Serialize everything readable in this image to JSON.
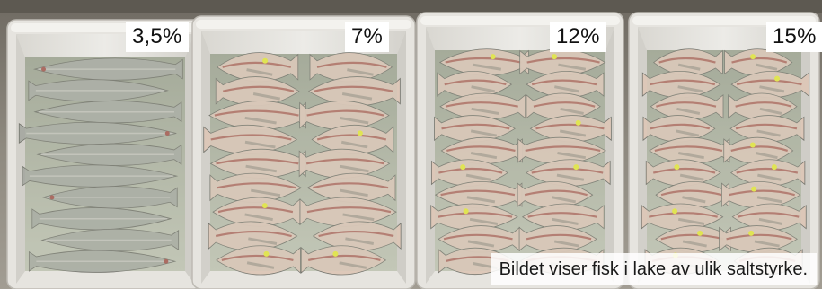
{
  "photo": {
    "tubs": [
      {
        "salt_label": "3,5%"
      },
      {
        "salt_label": "7%"
      },
      {
        "salt_label": "12%"
      },
      {
        "salt_label": "15%"
      }
    ],
    "caption": "Bildet viser fisk i lake av ulik saltstyrke.",
    "colors": {
      "background": "#8a857c",
      "tub_white": "#e6e4df",
      "brine": "#b6bba9",
      "fish_skin": "#a7aaa2",
      "fish_flesh": "#ddc7b8",
      "fish_blood": "#a5574f",
      "tag_yellow": "#e6ea3c"
    }
  }
}
